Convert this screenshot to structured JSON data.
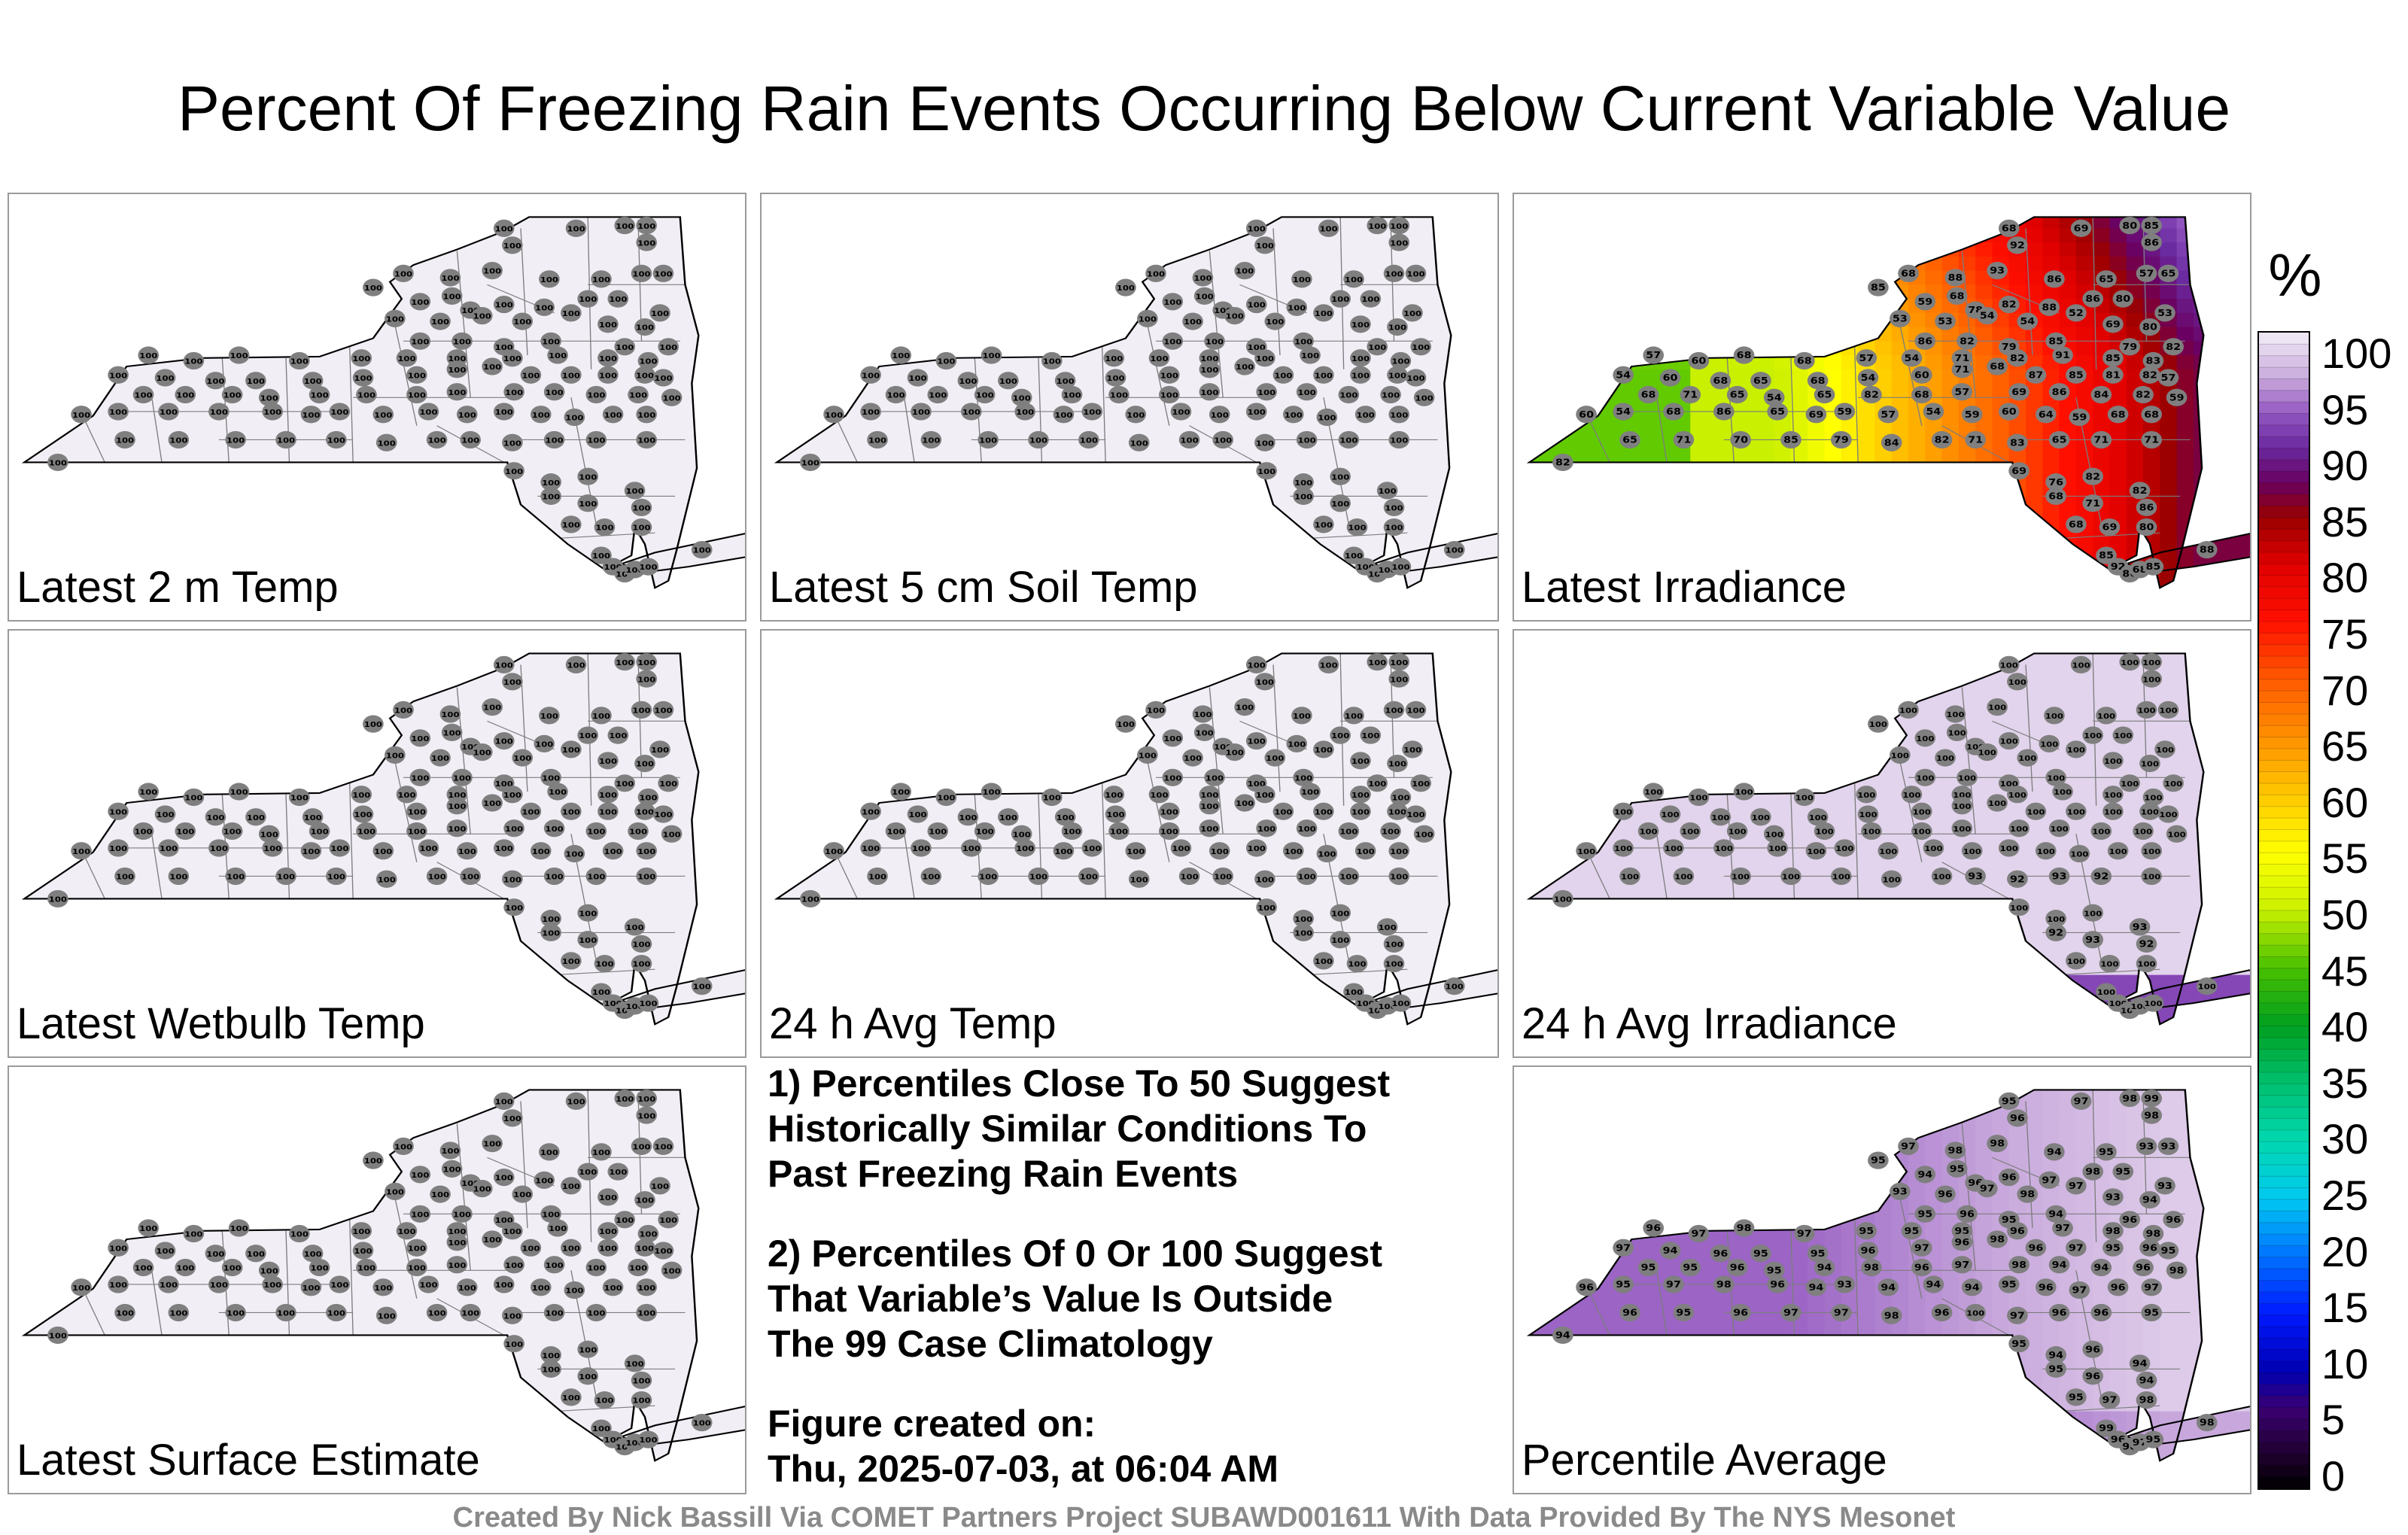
{
  "title": "Percent Of Freezing Rain Events Occurring Below Current Variable Value",
  "colors": {
    "state_fill_full": "#f1edf5",
    "station_dot": "#7f7f7f",
    "station_text": "#000000",
    "credit_text": "#8a8a8a",
    "panel_border": "#9a9a9a"
  },
  "colorbar": {
    "unit": "%",
    "ticks": [
      "100",
      "95",
      "90",
      "85",
      "80",
      "75",
      "70",
      "65",
      "60",
      "55",
      "50",
      "45",
      "40",
      "35",
      "30",
      "25",
      "20",
      "15",
      "10",
      "5",
      "0"
    ],
    "stops": [
      {
        "v": 0,
        "c": "#000000"
      },
      {
        "v": 3,
        "c": "#200030"
      },
      {
        "v": 7,
        "c": "#3a0073"
      },
      {
        "v": 10,
        "c": "#0000b0"
      },
      {
        "v": 15,
        "c": "#0018ff"
      },
      {
        "v": 20,
        "c": "#0070ff"
      },
      {
        "v": 25,
        "c": "#00c8f0"
      },
      {
        "v": 30,
        "c": "#00d8b0"
      },
      {
        "v": 35,
        "c": "#00c070"
      },
      {
        "v": 40,
        "c": "#00a020"
      },
      {
        "v": 45,
        "c": "#48c000"
      },
      {
        "v": 50,
        "c": "#c8f000"
      },
      {
        "v": 55,
        "c": "#ffff00"
      },
      {
        "v": 60,
        "c": "#ffc800"
      },
      {
        "v": 65,
        "c": "#ff9000"
      },
      {
        "v": 70,
        "c": "#ff5a00"
      },
      {
        "v": 75,
        "c": "#ff1000"
      },
      {
        "v": 80,
        "c": "#e00000"
      },
      {
        "v": 84,
        "c": "#9a0000"
      },
      {
        "v": 87,
        "c": "#6a0060"
      },
      {
        "v": 90,
        "c": "#6a2aa0"
      },
      {
        "v": 93,
        "c": "#9256c0"
      },
      {
        "v": 96,
        "c": "#c8a8dc"
      },
      {
        "v": 100,
        "c": "#f2eef6"
      }
    ]
  },
  "panels": [
    {
      "id": "temp2m",
      "label": "Latest 2 m Temp",
      "kind": "uniform",
      "value": "100",
      "fill_value": 100
    },
    {
      "id": "soil5cm",
      "label": "Latest 5 cm Soil Temp",
      "kind": "uniform",
      "value": "100",
      "fill_value": 100
    },
    {
      "id": "irradiance",
      "label": "Latest Irradiance",
      "kind": "irradiance"
    },
    {
      "id": "wetbulb",
      "label": "Latest Wetbulb Temp",
      "kind": "uniform",
      "value": "100",
      "fill_value": 100
    },
    {
      "id": "avgtemp24",
      "label": "24 h Avg Temp",
      "kind": "uniform",
      "value": "100",
      "fill_value": 100
    },
    {
      "id": "avgirr24",
      "label": "24 h Avg Irradiance",
      "kind": "avgirr"
    },
    {
      "id": "surface",
      "label": "Latest Surface Estimate",
      "kind": "uniform",
      "value": "100",
      "fill_value": 100
    },
    {
      "id": "average",
      "label": "Percentile Average",
      "kind": "average"
    }
  ],
  "notes": [
    [
      "1) Percentiles Close To 50 Suggest",
      "Historically Similar Conditions To",
      "Past Freezing Rain Events"
    ],
    [
      "2) Percentiles Of 0 Or 100 Suggest",
      "That Variable’s Value Is Outside",
      "The 99 Case Climatology"
    ],
    [
      "Figure created on:",
      "Thu, 2025-07-03, at 06:04 AM"
    ]
  ],
  "irradiance_values": [
    "68",
    "69",
    "80",
    "85",
    "92",
    "86",
    "68",
    "85",
    "88",
    "93",
    "86",
    "65",
    "57",
    "65",
    "59",
    "68",
    "78",
    "82",
    "88",
    "86",
    "80",
    "53",
    "53",
    "53",
    "54",
    "54",
    "52",
    "69",
    "80",
    "86",
    "82",
    "79",
    "85",
    "79",
    "82",
    "57",
    "60",
    "68",
    "68",
    "57",
    "54",
    "71",
    "82",
    "91",
    "85",
    "83",
    "54",
    "60",
    "68",
    "65",
    "68",
    "54",
    "60",
    "71",
    "68",
    "87",
    "85",
    "81",
    "82",
    "57",
    "68",
    "71",
    "65",
    "54",
    "65",
    "82",
    "68",
    "57",
    "69",
    "86",
    "84",
    "82",
    "59",
    "60",
    "54",
    "68",
    "86",
    "65",
    "69",
    "59",
    "57",
    "54",
    "59",
    "60",
    "64",
    "59",
    "68",
    "68",
    "65",
    "71",
    "70",
    "85",
    "79",
    "84",
    "82",
    "71",
    "83",
    "65",
    "71",
    "71",
    "82",
    "69",
    "76",
    "82",
    "82",
    "68",
    "71",
    "86"
  ],
  "avgirr_values": [
    "100",
    "100",
    "100",
    "100",
    "100",
    "100",
    "100",
    "100",
    "100",
    "100",
    "100",
    "100",
    "100",
    "100",
    "100",
    "100",
    "100",
    "100",
    "100",
    "100",
    "100",
    "100",
    "100",
    "100",
    "100",
    "100",
    "100",
    "100",
    "100",
    "100",
    "100",
    "100",
    "100",
    "100",
    "100",
    "100",
    "100",
    "100",
    "100",
    "100",
    "100",
    "100",
    "100",
    "100",
    "100",
    "100",
    "100",
    "100",
    "100",
    "100",
    "100",
    "100",
    "100",
    "100",
    "100",
    "100",
    "100",
    "100",
    "100",
    "100",
    "100",
    "100",
    "100",
    "100",
    "100",
    "100",
    "100",
    "100",
    "100",
    "100",
    "100",
    "100",
    "100",
    "100",
    "100",
    "100",
    "100",
    "100",
    "100",
    "100",
    "100",
    "100",
    "100",
    "100",
    "100",
    "100",
    "100",
    "100",
    "100",
    "100",
    "100",
    "100",
    "100",
    "100",
    "100",
    "93",
    "92",
    "93",
    "92",
    "100",
    "100",
    "100",
    "100",
    "100",
    "93",
    "92",
    "93",
    "92"
  ],
  "average_values": [
    "95",
    "97",
    "98",
    "99",
    "96",
    "98",
    "97",
    "95",
    "98",
    "98",
    "94",
    "95",
    "93",
    "93",
    "94",
    "95",
    "96",
    "96",
    "97",
    "98",
    "95",
    "93",
    "93",
    "96",
    "97",
    "98",
    "97",
    "93",
    "94",
    "95",
    "96",
    "95",
    "94",
    "96",
    "96",
    "96",
    "97",
    "98",
    "97",
    "95",
    "95",
    "95",
    "96",
    "97",
    "98",
    "98",
    "97",
    "94",
    "96",
    "95",
    "95",
    "96",
    "97",
    "96",
    "98",
    "96",
    "97",
    "95",
    "96",
    "95",
    "95",
    "95",
    "96",
    "95",
    "94",
    "98",
    "96",
    "97",
    "98",
    "94",
    "94",
    "96",
    "98",
    "96",
    "95",
    "97",
    "98",
    "96",
    "94",
    "93",
    "94",
    "94",
    "94",
    "95",
    "96",
    "97",
    "96",
    "97",
    "96",
    "95",
    "96",
    "97",
    "97",
    "98",
    "96",
    "100",
    "97",
    "96",
    "96",
    "95",
    "94",
    "95",
    "94",
    "96",
    "94",
    "95",
    "96",
    "94"
  ],
  "credit": "Created By Nick Bassill Via COMET Partners Project SUBAWD001611 With Data Provided By The NYS Mesonet"
}
